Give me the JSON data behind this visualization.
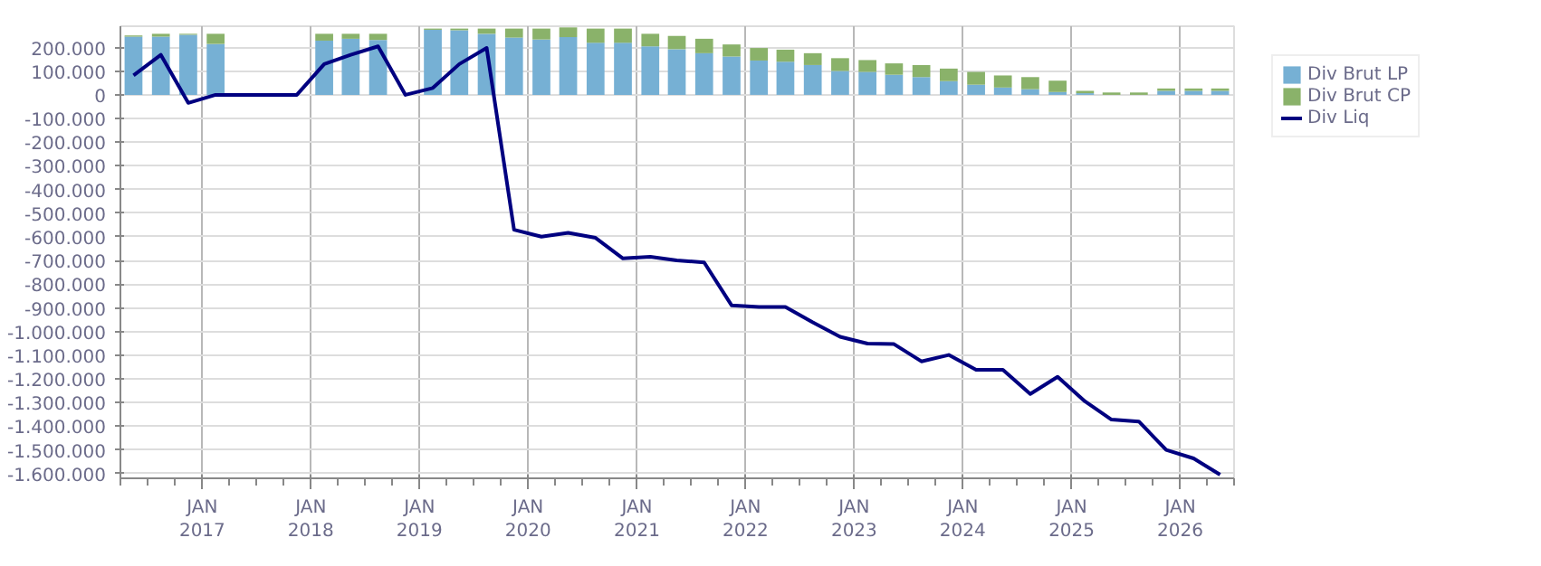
{
  "chart_data": {
    "type": "bar",
    "stacked": true,
    "x": [
      "2016-05-15",
      "2016-08-15",
      "2016-11-15",
      "2017-02-15",
      "2017-05-15",
      "2017-08-15",
      "2017-11-15",
      "2018-02-15",
      "2018-05-15",
      "2018-08-15",
      "2018-11-15",
      "2019-02-15",
      "2019-05-15",
      "2019-08-15",
      "2019-11-15",
      "2020-02-15",
      "2020-05-15",
      "2020-08-15",
      "2020-11-15",
      "2021-02-15",
      "2021-05-15",
      "2021-08-15",
      "2021-11-15",
      "2022-02-15",
      "2022-05-15",
      "2022-08-15",
      "2022-11-15",
      "2023-02-15",
      "2023-05-15",
      "2023-08-15",
      "2023-11-15",
      "2024-02-15",
      "2024-05-15",
      "2024-08-15",
      "2024-11-15",
      "2025-02-15",
      "2025-05-15",
      "2025-08-15",
      "2025-11-15",
      "2026-02-15",
      "2026-05-15"
    ],
    "series": [
      {
        "name": "Div Brut LP",
        "color": "#76b0d4",
        "values": [
          246000,
          246000,
          254000,
          215000,
          null,
          null,
          null,
          229000,
          237000,
          232000,
          null,
          275000,
          273000,
          258000,
          242000,
          234000,
          244000,
          220000,
          220000,
          205000,
          193000,
          176000,
          162000,
          145000,
          140000,
          126000,
          101000,
          97000,
          85000,
          75000,
          58000,
          43000,
          31000,
          24000,
          12000,
          7000,
          0,
          0,
          17000,
          17000,
          17000
        ]
      },
      {
        "name": "Div Brut CP",
        "color": "#8ab26a",
        "values": [
          5000,
          12000,
          4000,
          43000,
          null,
          null,
          null,
          29000,
          21000,
          26000,
          null,
          5000,
          7000,
          22000,
          38000,
          46000,
          41000,
          60000,
          60000,
          53000,
          56000,
          61000,
          51000,
          53000,
          51000,
          50000,
          54000,
          50000,
          48000,
          51000,
          53000,
          54000,
          51000,
          51000,
          48000,
          10000,
          10000,
          10000,
          10000,
          10000,
          10000
        ]
      },
      {
        "name": "Div Liq",
        "type": "line",
        "color": "#000080",
        "values": [
          82000,
          169000,
          -34000,
          0,
          0,
          0,
          0,
          130000,
          169000,
          205000,
          0,
          29000,
          130000,
          198000,
          -570000,
          -599000,
          -583000,
          -604000,
          -691000,
          -684000,
          -699000,
          -708000,
          -889000,
          -896000,
          -896000,
          -961000,
          -1022000,
          -1051000,
          -1053000,
          -1126000,
          -1099000,
          -1162000,
          -1162000,
          -1264000,
          -1191000,
          -1295000,
          -1372000,
          -1380000,
          -1500000,
          -1536000,
          -1605000
        ]
      }
    ],
    "xlim": [
      "2016-04-01",
      "2026-07-01"
    ],
    "xticks": [
      {
        "value": "2017-01-01",
        "label": "JAN\n2017"
      },
      {
        "value": "2018-01-01",
        "label": "JAN\n2018"
      },
      {
        "value": "2019-01-01",
        "label": "JAN\n2019"
      },
      {
        "value": "2020-01-01",
        "label": "JAN\n2020"
      },
      {
        "value": "2021-01-01",
        "label": "JAN\n2021"
      },
      {
        "value": "2022-01-01",
        "label": "JAN\n2022"
      },
      {
        "value": "2023-01-01",
        "label": "JAN\n2023"
      },
      {
        "value": "2024-01-01",
        "label": "JAN\n2024"
      },
      {
        "value": "2025-01-01",
        "label": "JAN\n2025"
      },
      {
        "value": "2026-01-01",
        "label": "JAN\n2026"
      }
    ],
    "ylim": [
      -1620000,
      290000
    ],
    "yticks": [
      {
        "value": 200000,
        "label": "200.000"
      },
      {
        "value": 100000,
        "label": "100.000"
      },
      0,
      {
        "value": -100000,
        "label": "-100.000"
      },
      {
        "value": -200000,
        "label": "-200.000"
      },
      {
        "value": -300000,
        "label": "-300.000"
      },
      {
        "value": -400000,
        "label": "-400.000"
      },
      {
        "value": -500000,
        "label": "-500.000"
      },
      {
        "value": -600000,
        "label": "-600.000"
      },
      {
        "value": -700000,
        "label": "-700.000"
      },
      {
        "value": -800000,
        "label": "-800.000"
      },
      {
        "value": -900000,
        "label": "-900.000"
      },
      {
        "value": -1000000,
        "label": "-1.000.000"
      },
      {
        "value": -1100000,
        "label": "-1.100.000"
      },
      {
        "value": -1200000,
        "label": "-1.200.000"
      },
      {
        "value": -1300000,
        "label": "-1.300.000"
      },
      {
        "value": -1400000,
        "label": "-1.400.000"
      },
      {
        "value": -1500000,
        "label": "-1.500.000"
      },
      {
        "value": -1600000,
        "label": "-1.600.000"
      }
    ],
    "grid": true,
    "legend": "top right"
  }
}
